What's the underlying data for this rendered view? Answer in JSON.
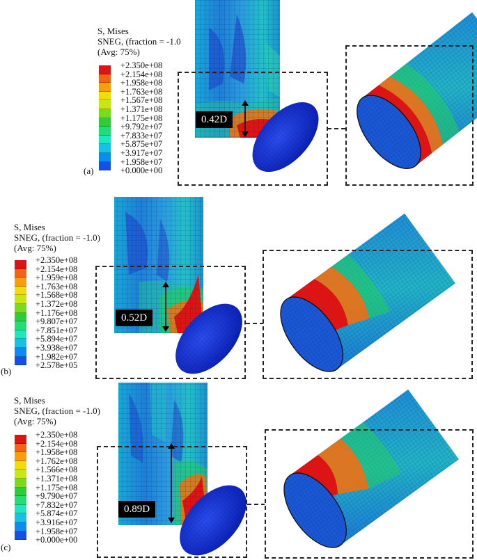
{
  "colors": {
    "contour": [
      "#0a0adc",
      "#1450e6",
      "#0a8cf0",
      "#18c0e8",
      "#1ee6c0",
      "#22dc78",
      "#2ecc3a",
      "#78dc1e",
      "#c8e614",
      "#f0dc0a",
      "#f5a00a",
      "#f06414",
      "#dc1414"
    ]
  },
  "panels": [
    {
      "id": "a",
      "label": "(a)",
      "legend": {
        "line1": "S, Mises",
        "line2": "SNEG, (fraction = -1.0",
        "line3": "(Avg: 75%)",
        "ticks": [
          "+2.350e+08",
          "+2.154e+08",
          "+1.958e+08",
          "+1.763e+08",
          "+1.567e+08",
          "+1.371e+08",
          "+1.175e+08",
          "+9.792e+07",
          "+7.833e+07",
          "+5.875e+07",
          "+3.917e+07",
          "+1.958e+07",
          "+0.000e+00"
        ]
      },
      "measure": "0.42D"
    },
    {
      "id": "b",
      "label": "(b)",
      "legend": {
        "line1": "S, Mises",
        "line2": "SNEG, (fraction = -1.0)",
        "line3": "(Avg: 75%)",
        "ticks": [
          "+2.350e+08",
          "+2.154e+08",
          "+1.959e+08",
          "+1.763e+08",
          "+1.568e+08",
          "+1.372e+08",
          "+1.176e+08",
          "+9.807e+07",
          "+7.851e+07",
          "+5.894e+07",
          "+3.938e+07",
          "+1.982e+07",
          "+2.578e+05"
        ]
      },
      "measure": "0.52D"
    },
    {
      "id": "c",
      "label": "(c)",
      "legend": {
        "line1": "S, Mises",
        "line2": "SNEG, (fraction = -1.0)",
        "line3": "(Avg: 75%)",
        "ticks": [
          "+2.350e+08",
          "+2.154e+08",
          "+1.958e+08",
          "+1.762e+08",
          "+1.566e+08",
          "+1.371e+08",
          "+1.175e+08",
          "+9.790e+07",
          "+7.832e+07",
          "+5.874e+07",
          "+3.916e+07",
          "+1.958e+07",
          "+0.000e+00"
        ]
      },
      "measure": "0.89D"
    }
  ]
}
